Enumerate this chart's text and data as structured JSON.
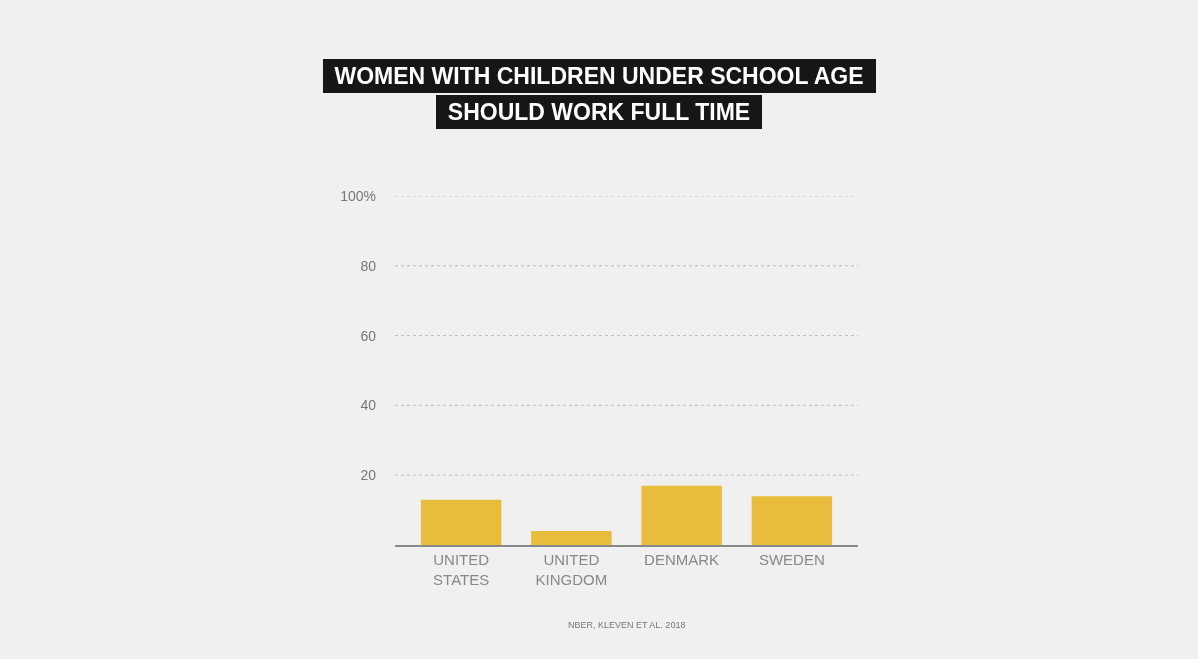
{
  "chart_data": {
    "type": "bar",
    "title": "WOMEN WITH CHILDREN UNDER SCHOOL AGE\nSHOULD WORK FULL TIME",
    "categories": [
      "UNITED\nSTATES",
      "UNITED\nKINGDOM",
      "DENMARK",
      "SWEDEN"
    ],
    "values": [
      13,
      4,
      17,
      14
    ],
    "color": "#e8bd3c",
    "ylim": [
      0,
      100
    ],
    "yticks": [
      20,
      40,
      60,
      {
        "value": 100,
        "label": "100%"
      },
      80
    ],
    "grid": "y",
    "annotations": [
      "NBER, KLEVEN ET AL. 2018"
    ]
  }
}
